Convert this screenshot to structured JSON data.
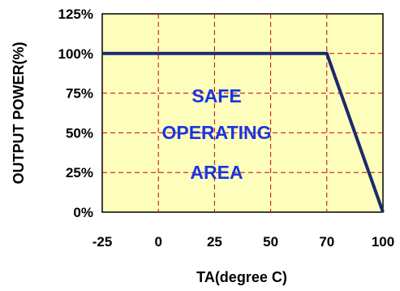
{
  "chart_data": {
    "type": "line",
    "title": "",
    "xlabel": "TA(degree C)",
    "ylabel": "OUTPUT POWER(%)",
    "x_categories": [
      "-25",
      "0",
      "25",
      "50",
      "70",
      "100"
    ],
    "y_ticks": [
      "0%",
      "25%",
      "50%",
      "75%",
      "100%",
      "125%"
    ],
    "ylim": [
      0,
      125
    ],
    "grid": true,
    "series": [
      {
        "x": [
          -25,
          70,
          100
        ],
        "y": [
          100,
          100,
          0
        ]
      }
    ],
    "annotations": [
      "SAFE",
      "OPERATING",
      "AREA"
    ],
    "colors": {
      "plot_background": "#fdfdbc",
      "line": "#1a2a6e",
      "gridline": "#cc0000",
      "annotation_text": "#1a35e0"
    }
  }
}
